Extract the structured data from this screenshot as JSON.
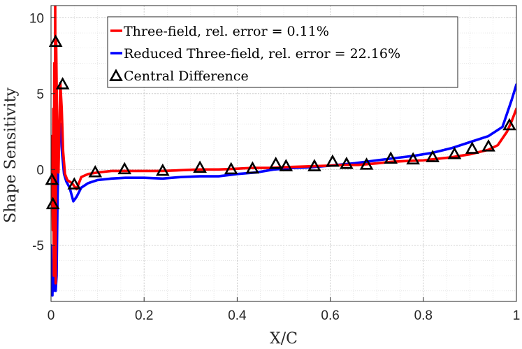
{
  "chart_data": {
    "type": "line",
    "xlabel": "X/C",
    "ylabel": "Shape Sensitivity",
    "xlim": [
      0,
      1
    ],
    "ylim": [
      -8.7,
      10.8
    ],
    "xticks": [
      0,
      0.2,
      0.4,
      0.6,
      0.8,
      1
    ],
    "xtick_labels": [
      "0",
      "0.2",
      "0.4",
      "0.6",
      "0.8",
      "1"
    ],
    "yticks": [
      -5,
      0,
      5,
      10
    ],
    "ytick_labels": [
      "-5",
      "0",
      "5",
      "10"
    ],
    "grid": true,
    "minor_grid": true,
    "legend_position": "top-center",
    "series": [
      {
        "name": "Three-field, rel. error = 0.11%",
        "color": "#ff0000",
        "style": "line",
        "x": [
          0,
          0.002,
          0.004,
          0.005,
          0.006,
          0.007,
          0.008,
          0.009,
          0.01,
          0.011,
          0.013,
          0.016,
          0.02,
          0.023,
          0.026,
          0.03,
          0.035,
          0.045,
          0.055,
          0.065,
          0.08,
          0.1,
          0.13,
          0.16,
          0.2,
          0.24,
          0.28,
          0.32,
          0.36,
          0.4,
          0.43,
          0.47,
          0.5,
          0.55,
          0.6,
          0.63,
          0.66,
          0.7,
          0.73,
          0.76,
          0.8,
          0.83,
          0.86,
          0.9,
          0.94,
          0.96,
          0.98,
          0.99,
          1
        ],
        "y": [
          -0.5,
          2.2,
          -4,
          4,
          -7,
          7,
          -6,
          10.8,
          -7.5,
          8.5,
          3,
          -0.2,
          5.7,
          4,
          1.2,
          -0.3,
          -0.7,
          -0.9,
          -1.3,
          -0.5,
          -0.3,
          -0.2,
          -0.1,
          -0.1,
          -0.1,
          -0.1,
          -0.05,
          0,
          0,
          0.05,
          0.1,
          0.1,
          0.15,
          0.2,
          0.25,
          0.3,
          0.3,
          0.4,
          0.5,
          0.55,
          0.6,
          0.7,
          0.8,
          1.0,
          1.3,
          1.6,
          2.5,
          3.2,
          4.0
        ]
      },
      {
        "name": "Reduced Three-field, rel. error = 22.16%",
        "color": "#0000ff",
        "style": "line",
        "x": [
          0,
          0.003,
          0.004,
          0.006,
          0.008,
          0.01,
          0.012,
          0.014,
          0.017,
          0.02,
          0.024,
          0.028,
          0.033,
          0.04,
          0.048,
          0.055,
          0.065,
          0.08,
          0.1,
          0.13,
          0.16,
          0.2,
          0.24,
          0.28,
          0.32,
          0.36,
          0.4,
          0.44,
          0.48,
          0.52,
          0.56,
          0.6,
          0.65,
          0.7,
          0.74,
          0.78,
          0.82,
          0.86,
          0.9,
          0.94,
          0.97,
          0.99,
          1
        ],
        "y": [
          -5,
          -8.3,
          -6,
          -8,
          -4,
          -8,
          -7,
          -2,
          2,
          3,
          1,
          -0.3,
          -0.8,
          -1.2,
          -2.1,
          -1.8,
          -1.2,
          -0.9,
          -0.7,
          -0.6,
          -0.55,
          -0.55,
          -0.6,
          -0.5,
          -0.45,
          -0.45,
          -0.3,
          -0.2,
          0,
          0.1,
          0.15,
          0.25,
          0.4,
          0.6,
          0.75,
          0.9,
          1.1,
          1.4,
          1.8,
          2.2,
          2.8,
          4.6,
          5.6
        ]
      },
      {
        "name": "Central Difference",
        "color": "#000000",
        "style": "marker",
        "x": [
          0.002,
          0.004,
          0.01,
          0.025,
          0.05,
          0.095,
          0.158,
          0.24,
          0.32,
          0.387,
          0.433,
          0.483,
          0.505,
          0.566,
          0.605,
          0.635,
          0.678,
          0.73,
          0.778,
          0.82,
          0.867,
          0.905,
          0.94,
          0.985
        ],
        "y": [
          -0.7,
          -2.3,
          8.4,
          5.6,
          -1.0,
          -0.2,
          0.0,
          -0.1,
          0.1,
          0.0,
          0.05,
          0.35,
          0.2,
          0.2,
          0.5,
          0.35,
          0.3,
          0.7,
          0.65,
          0.8,
          1.0,
          1.35,
          1.5,
          2.9
        ]
      }
    ]
  }
}
